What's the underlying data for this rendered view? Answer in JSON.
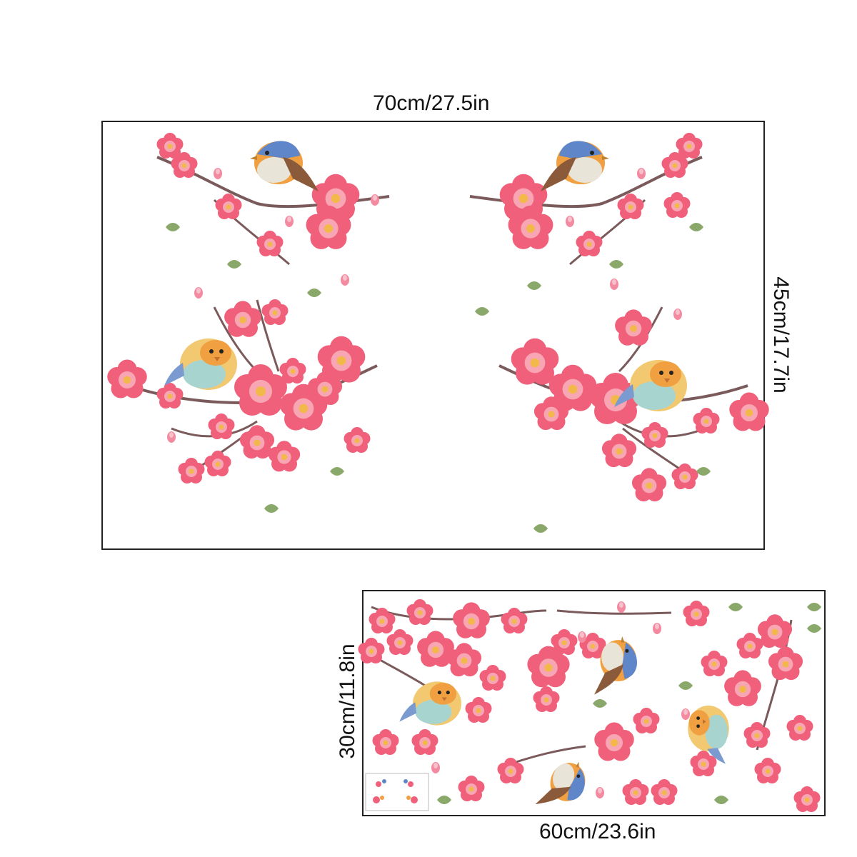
{
  "large_sheet": {
    "width_label": "70cm/27.5in",
    "height_label": "45cm/17.7in"
  },
  "small_sheet": {
    "width_label": "60cm/23.6in",
    "height_label": "30cm/11.8in"
  },
  "colors": {
    "blossom": "#f0607a",
    "blossom_light": "#f8a6b4",
    "blossom_center": "#f2b84a",
    "branch": "#7a5a5a",
    "leaf": "#8aa86a",
    "bird_blue": "#5f86c9",
    "bird_orange": "#f0a040",
    "bird_brown": "#8a5a3a",
    "frame": "#222222"
  },
  "icons": [
    "blossom-icon",
    "bird-icon",
    "leaf-icon",
    "branch-icon"
  ]
}
